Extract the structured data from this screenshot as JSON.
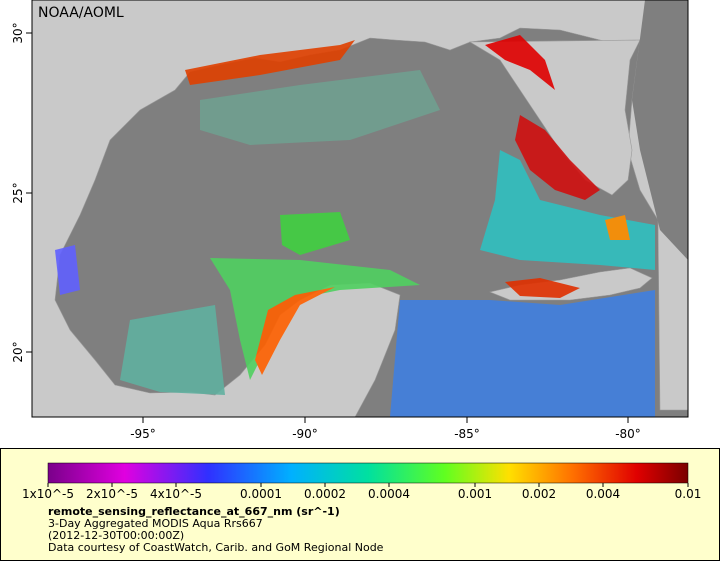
{
  "map": {
    "label": "NOAA/AOML",
    "lon_labels": [
      "-95°",
      "-90°",
      "-85°",
      "-80°"
    ],
    "lat_labels": [
      "30°",
      "25°",
      "20°"
    ]
  },
  "legend": {
    "scale_labels": [
      "1x10^-5",
      "2x10^-5",
      "4x10^-5",
      "0.0001",
      "0.0002",
      "0.0004",
      "0.001",
      "0.002",
      "0.004",
      "0.01"
    ],
    "variable": "remote_sensing_reflectance_at_667_nm (sr^-1)",
    "lines": [
      "3-Day Aggregated MODIS Aqua Rrs667",
      "(2012-12-30T00:00:00Z)",
      "Data courtesy of CoastWatch, Carib. and GoM Regional Node"
    ]
  }
}
